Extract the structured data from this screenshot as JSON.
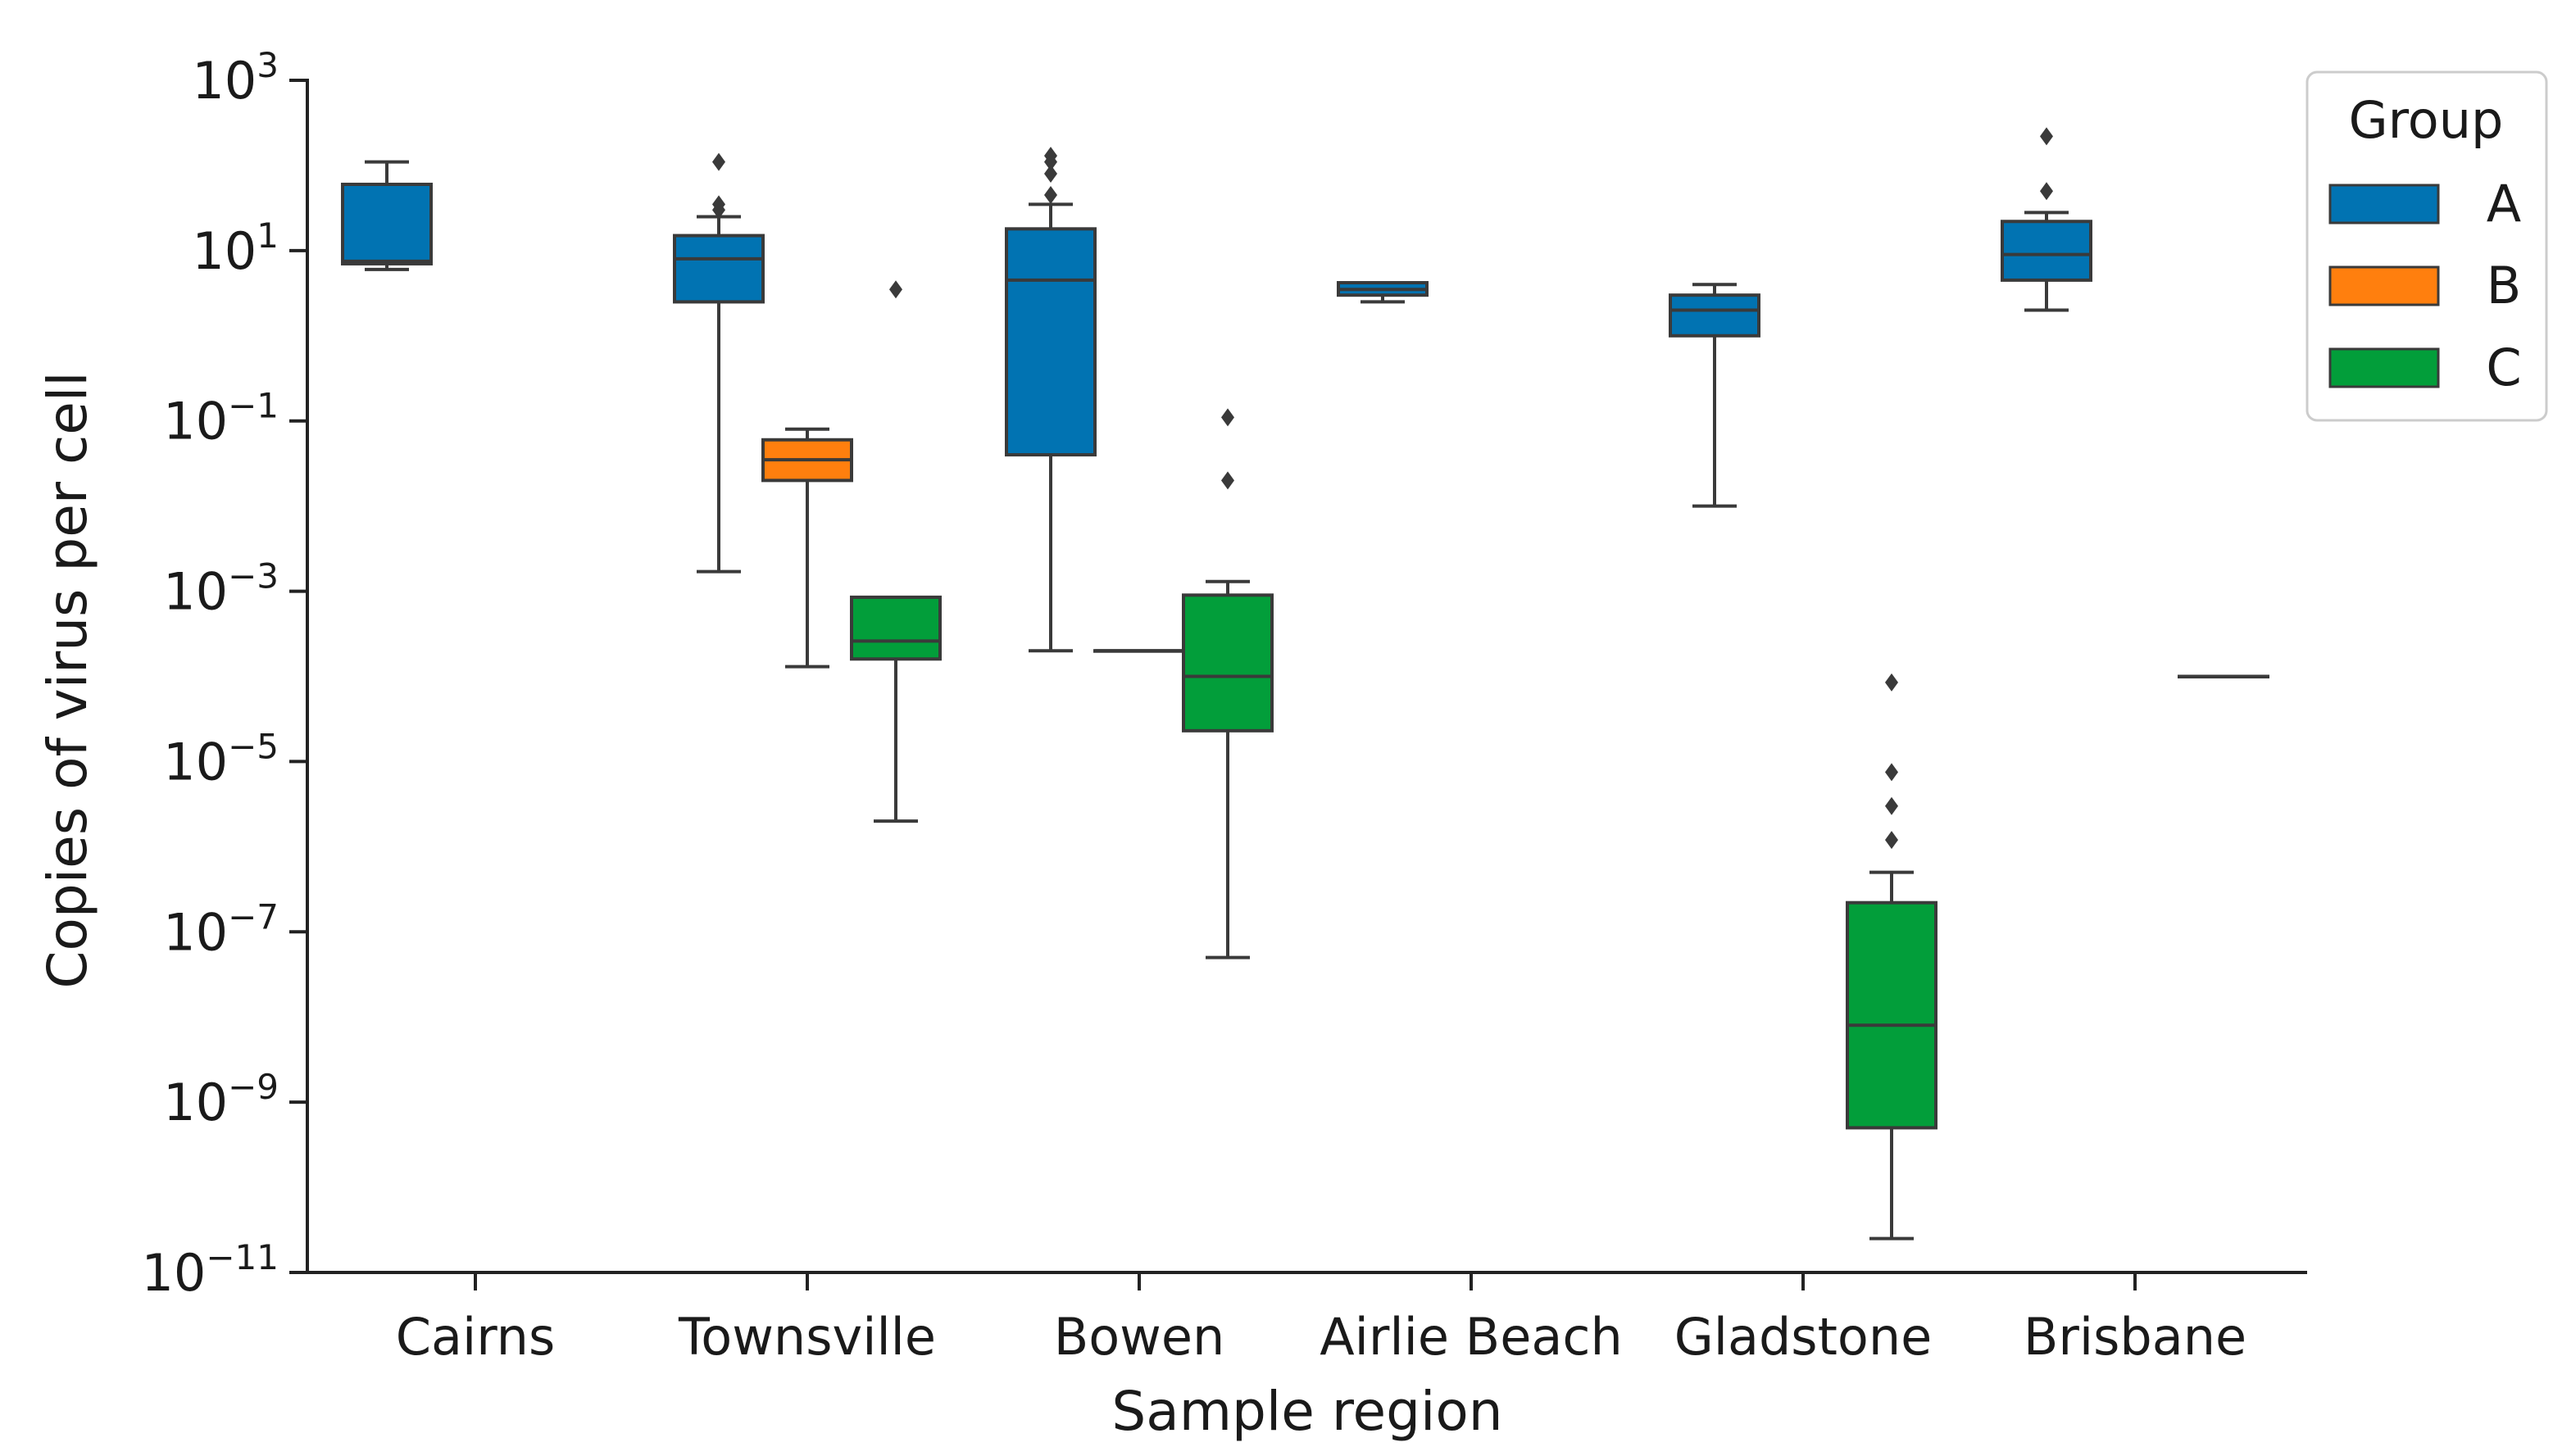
{
  "chart_data": {
    "type": "box",
    "xlabel": "Sample region",
    "ylabel": "Copies of virus per cell",
    "yscale": "log",
    "ylim": [
      1e-11,
      1000
    ],
    "y_ticks": [
      {
        "value": 1e-11,
        "base": "10",
        "exp": "−11"
      },
      {
        "value": 1e-09,
        "base": "10",
        "exp": "−9"
      },
      {
        "value": 1e-07,
        "base": "10",
        "exp": "−7"
      },
      {
        "value": 1e-05,
        "base": "10",
        "exp": "−5"
      },
      {
        "value": 0.001,
        "base": "10",
        "exp": "−3"
      },
      {
        "value": 0.1,
        "base": "10",
        "exp": "−1"
      },
      {
        "value": 10,
        "base": "10",
        "exp": "1"
      },
      {
        "value": 1000,
        "base": "10",
        "exp": "3"
      }
    ],
    "categories": [
      "Cairns",
      "Townsville",
      "Bowen",
      "Airlie Beach",
      "Gladstone",
      "Brisbane"
    ],
    "legend": {
      "title": "Group",
      "placement": "top-right outside"
    },
    "grid": false,
    "series": [
      {
        "name": "A",
        "color": "#0173b2",
        "boxes": [
          {
            "category": "Cairns",
            "whislo": 6,
            "q1": 7,
            "med": 7.5,
            "q3": 60,
            "whishi": 110,
            "fliers": []
          },
          {
            "category": "Townsville",
            "whislo": 0.0017,
            "q1": 2.5,
            "med": 8,
            "q3": 15,
            "whishi": 25,
            "fliers": [
              30,
              35,
              110
            ]
          },
          {
            "category": "Bowen",
            "whislo": 0.0002,
            "q1": 0.04,
            "med": 4.5,
            "q3": 18,
            "whishi": 35,
            "fliers": [
              45,
              80,
              110,
              130
            ]
          },
          {
            "category": "Airlie Beach",
            "whislo": 2.5,
            "q1": 3,
            "med": 3.5,
            "q3": 4.2,
            "whishi": 4.2,
            "fliers": []
          },
          {
            "category": "Gladstone",
            "whislo": 0.01,
            "q1": 1,
            "med": 2,
            "q3": 3,
            "whishi": 4,
            "fliers": []
          },
          {
            "category": "Brisbane",
            "whislo": 2,
            "q1": 4.5,
            "med": 9,
            "q3": 22,
            "whishi": 28,
            "fliers": [
              50,
              220
            ]
          }
        ]
      },
      {
        "name": "B",
        "color": "#ff7f0e",
        "boxes": [
          {
            "category": "Townsville",
            "whislo": 0.00013,
            "q1": 0.02,
            "med": 0.035,
            "q3": 0.06,
            "whishi": 0.08,
            "fliers": []
          },
          {
            "category": "Bowen",
            "whislo": 0.0002,
            "q1": 0.0002,
            "med": 0.0002,
            "q3": 0.0002,
            "whishi": 0.0002,
            "fliers": []
          }
        ]
      },
      {
        "name": "C",
        "color": "#029e3a",
        "boxes": [
          {
            "category": "Townsville",
            "whislo": 2e-06,
            "q1": 0.00016,
            "med": 0.00026,
            "q3": 0.00085,
            "whishi": 0.00085,
            "fliers": [
              3.5
            ]
          },
          {
            "category": "Bowen",
            "whislo": 5e-08,
            "q1": 2.3e-05,
            "med": 0.0001,
            "q3": 0.0009,
            "whishi": 0.0013,
            "fliers": [
              0.02,
              0.11
            ]
          },
          {
            "category": "Gladstone",
            "whislo": 2.5e-11,
            "q1": 5e-10,
            "med": 8e-09,
            "q3": 2.2e-07,
            "whishi": 5e-07,
            "fliers": [
              1.2e-06,
              3e-06,
              7.5e-06,
              8.5e-05
            ]
          },
          {
            "category": "Brisbane",
            "whislo": 0.0001,
            "q1": 0.0001,
            "med": 0.0001,
            "q3": 0.0001,
            "whishi": 0.0001,
            "fliers": []
          }
        ]
      }
    ]
  }
}
